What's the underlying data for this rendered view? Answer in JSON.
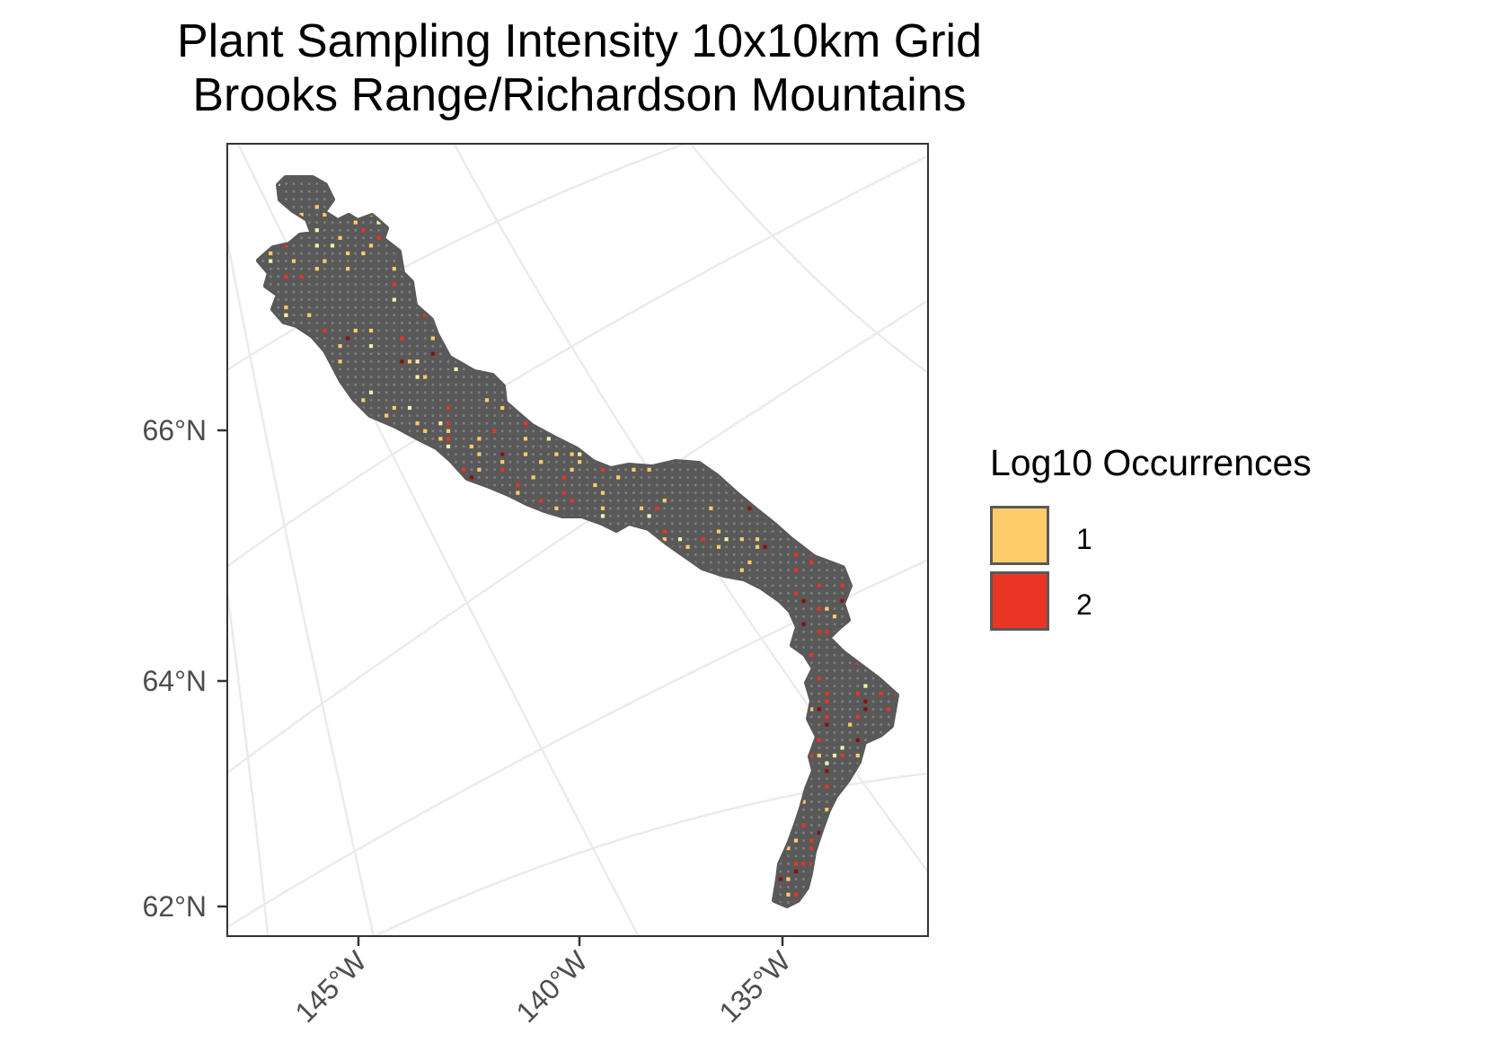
{
  "title": [
    "Plant Sampling Intensity 10x10km Grid",
    "Brooks Range/Richardson Mountains"
  ],
  "colors": {
    "land": "#595959",
    "empty_cell": "#7f7f7f",
    "graticule": "#ebebeb",
    "panel_border": "#333333",
    "axis_text": "#4d4d4d",
    "low": "#fecc6b",
    "high": "#ea3424",
    "dark": "#8b0f0f",
    "pale": "#fff0a8"
  },
  "y_ticks": [
    "66°N",
    "64°N",
    "62°N"
  ],
  "x_ticks": [
    "145°W",
    "140°W",
    "135°W"
  ],
  "legend": {
    "title": "Log10 Occurrences",
    "items": [
      {
        "label": "1",
        "color": "#fecc6b"
      },
      {
        "label": "2",
        "color": "#ea3424"
      }
    ]
  }
}
